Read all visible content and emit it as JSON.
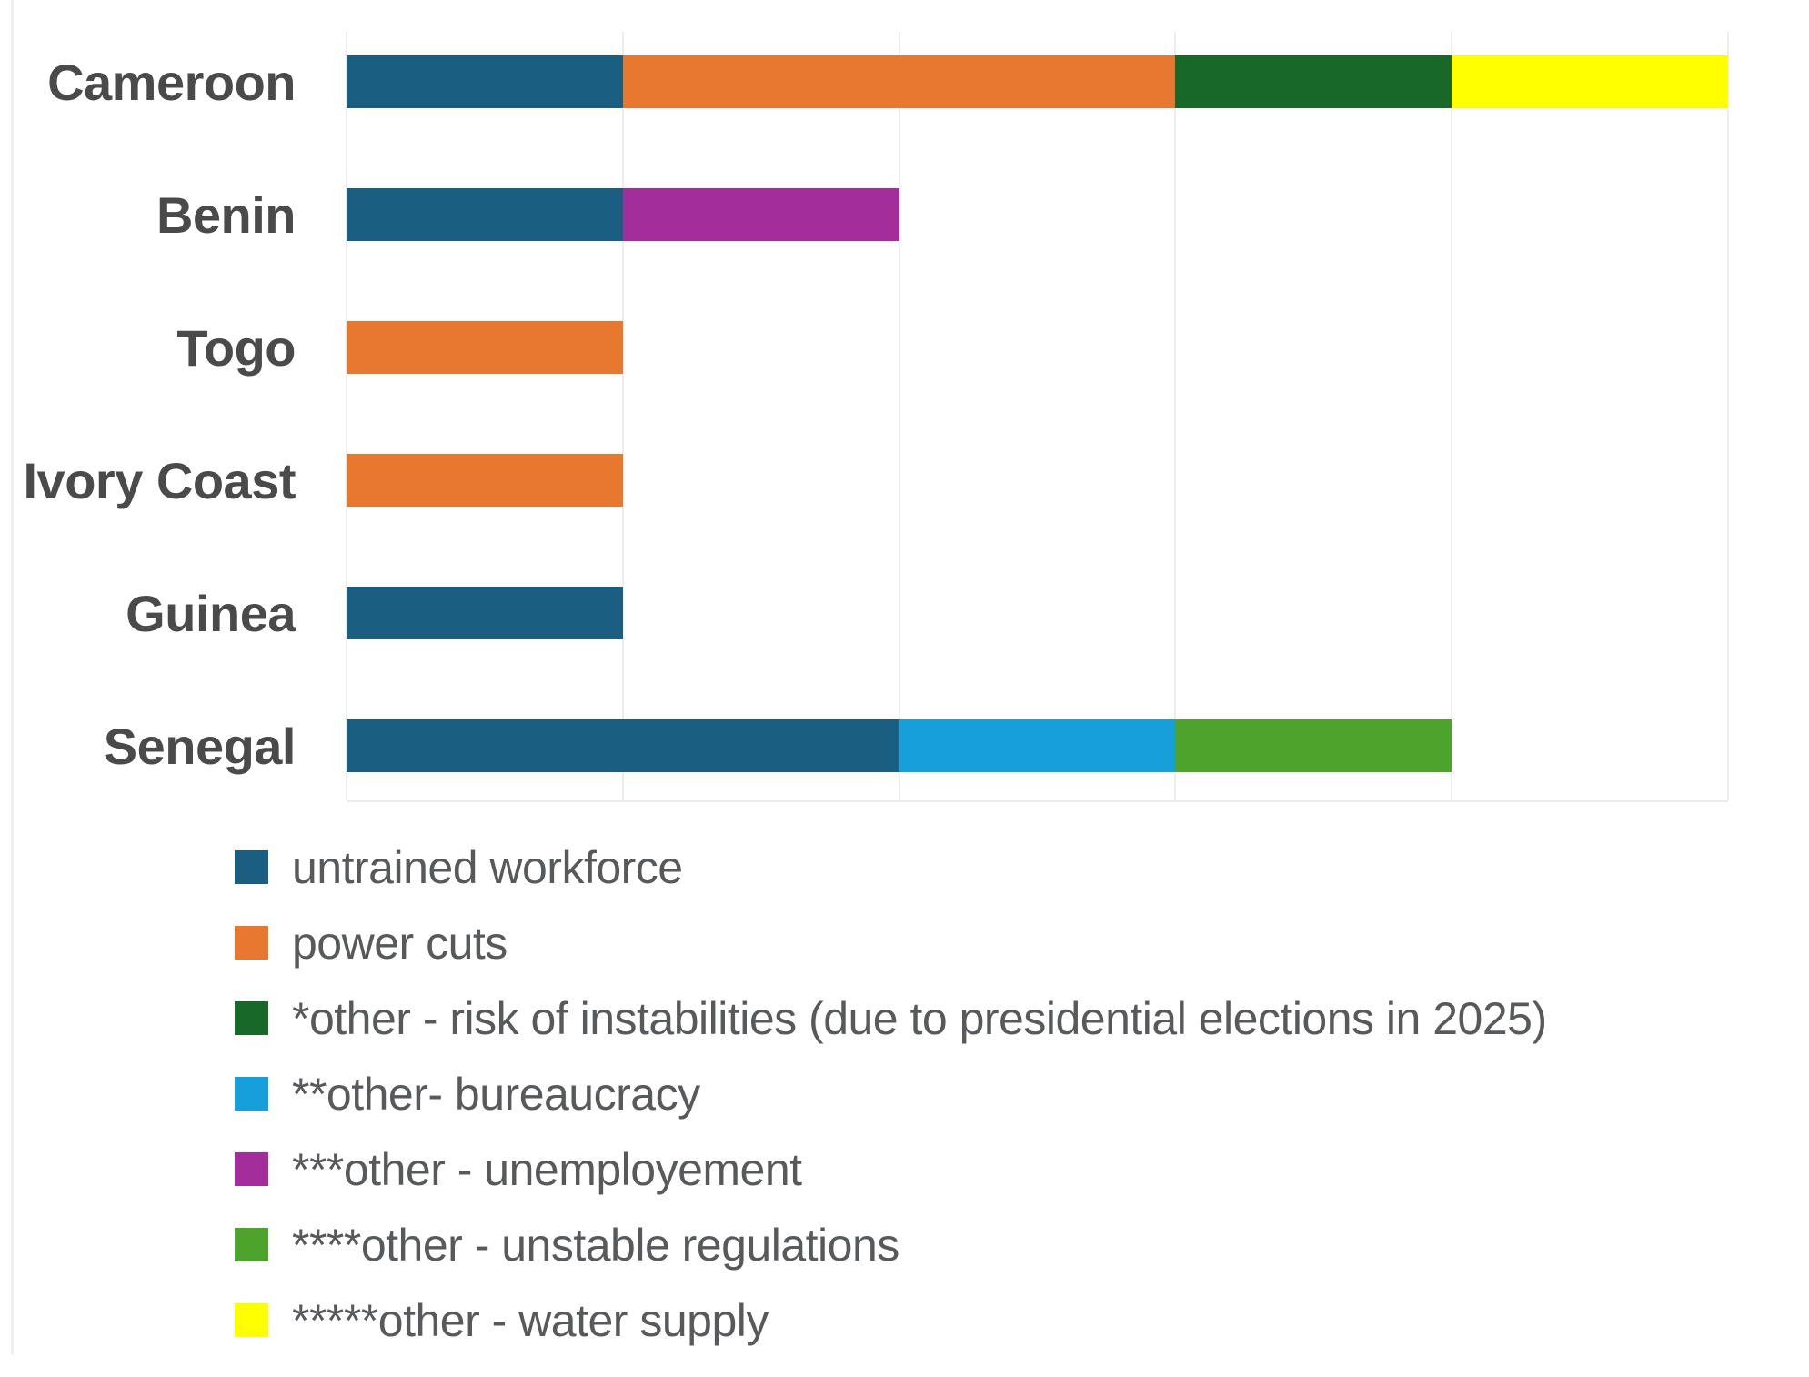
{
  "chart_data": {
    "type": "bar",
    "orientation": "horizontal",
    "stacked": true,
    "title": "",
    "xlabel": "",
    "ylabel": "",
    "categories": [
      "Cameroon",
      "Benin",
      "Togo",
      "Ivory Coast",
      "Guinea",
      "Senegal"
    ],
    "series": [
      {
        "name": "untrained workforce",
        "color": "#1a5f81",
        "values": [
          1,
          1,
          0,
          0,
          1,
          2
        ]
      },
      {
        "name": "power cuts",
        "color": "#e8772f",
        "values": [
          2,
          0,
          1,
          1,
          0,
          0
        ]
      },
      {
        "name": "*other - risk of instabilities (due to presidential elections in 2025)",
        "color": "#186929",
        "values": [
          1,
          0,
          0,
          0,
          0,
          0
        ]
      },
      {
        "name": "**other- bureaucracy",
        "color": "#169fdb",
        "values": [
          0,
          0,
          0,
          0,
          0,
          1
        ]
      },
      {
        "name": "***other - unemployement",
        "color": "#a42d9c",
        "values": [
          0,
          1,
          0,
          0,
          0,
          0
        ]
      },
      {
        "name": "****other - unstable regulations",
        "color": "#4da32c",
        "values": [
          0,
          0,
          0,
          0,
          0,
          1
        ]
      },
      {
        "name": "*****other - water supply",
        "color": "#ffff00",
        "values": [
          1,
          0,
          0,
          0,
          0,
          0
        ]
      }
    ],
    "xlim": [
      0,
      5
    ],
    "gridline_interval": 1,
    "grid": true,
    "grid_color": "#ededed",
    "legend_position": "bottom-left",
    "category_label_color": "#4a4a4a",
    "legend_text_color": "#58595b",
    "background_color": "#ffffff"
  }
}
